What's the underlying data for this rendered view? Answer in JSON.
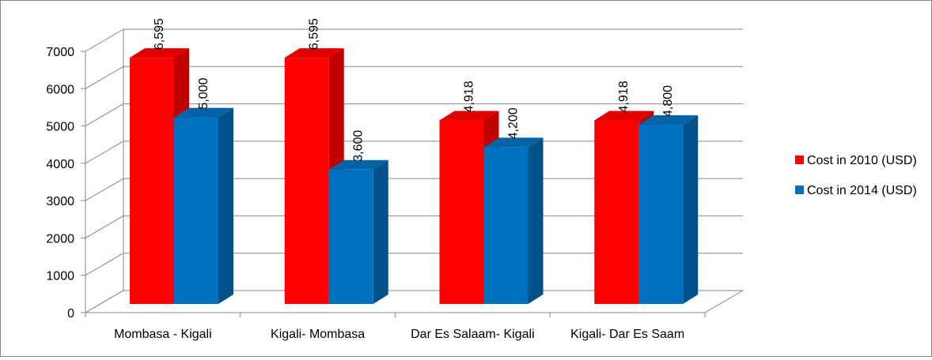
{
  "chart_data": {
    "type": "bar",
    "style": "3d-clustered-column",
    "categories": [
      "Mombasa - Kigali",
      "Kigali- Mombasa",
      "Dar Es Salaam- Kigali",
      "Kigali- Dar Es Saam"
    ],
    "series": [
      {
        "name": "Cost in 2010 (USD)",
        "values": [
          6595,
          6595,
          4918,
          4918
        ],
        "labels": [
          "6,595",
          "6,595",
          "4,918",
          "4,918"
        ],
        "color": "#FF0000",
        "side_color": "#C00000",
        "top_color": "#E00000"
      },
      {
        "name": "Cost in 2014 (USD)",
        "values": [
          5000,
          3600,
          4200,
          4800
        ],
        "labels": [
          "5,000",
          "3,600",
          "4,200",
          "4,800"
        ],
        "color": "#0070C0",
        "side_color": "#00508A",
        "top_color": "#0462A6"
      }
    ],
    "ylim": [
      0,
      7000
    ],
    "yticks": [
      0,
      1000,
      2000,
      3000,
      4000,
      5000,
      6000,
      7000
    ],
    "ytick_labels": [
      "0",
      "1000",
      "2000",
      "3000",
      "4000",
      "5000",
      "6000",
      "7000"
    ],
    "grid": true,
    "legend_position": "right",
    "data_label_orientation": "rotated-vertical"
  }
}
